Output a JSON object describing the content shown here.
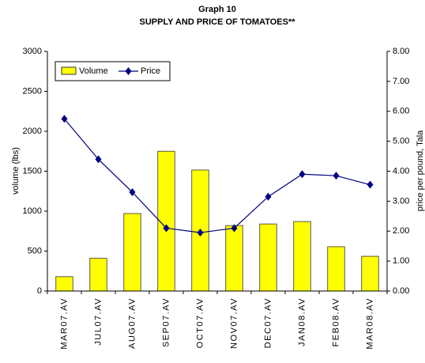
{
  "chart_data": {
    "type": "bar_line",
    "title": "Graph 10",
    "subtitle": "SUPPLY AND PRICE OF TOMATOES**",
    "y_label": "volume (lbs)",
    "y2_label": "price per pound, Tala",
    "categories": [
      "MAR07.AV",
      "JUL07.AV",
      "AUG07.AV",
      "SEP07.AV",
      "OCT07.AV",
      "NOV07.AV",
      "DEC07.AV",
      "JAN08.AV",
      "FEB08.AV",
      "MAR08.AV"
    ],
    "series": [
      {
        "name": "Volume",
        "type": "bar",
        "color": "#ffff00",
        "values": [
          180,
          410,
          970,
          1750,
          1515,
          820,
          840,
          870,
          555,
          435
        ]
      },
      {
        "name": "Price",
        "type": "line",
        "axis": "y2",
        "color": "#000080",
        "values": [
          5.75,
          4.4,
          3.3,
          2.1,
          1.95,
          2.1,
          3.15,
          3.9,
          3.85,
          3.55
        ]
      }
    ],
    "ylim": [
      0,
      3000
    ],
    "yticks": [
      0,
      500,
      1000,
      1500,
      2000,
      2500,
      3000
    ],
    "y2lim": [
      0,
      8
    ],
    "y2ticks": [
      {
        "value": 0,
        "label": "0.00"
      },
      {
        "value": 1,
        "label": "1.00"
      },
      {
        "value": 2,
        "label": "2.00"
      },
      {
        "value": 3,
        "label": "3.00"
      },
      {
        "value": 4,
        "label": "4.00"
      },
      {
        "value": 5,
        "label": "5.00"
      },
      {
        "value": 6,
        "label": "6.00"
      },
      {
        "value": 7,
        "label": "7.00"
      },
      {
        "value": 8,
        "label": "8.00"
      }
    ],
    "legend": "top-left"
  }
}
